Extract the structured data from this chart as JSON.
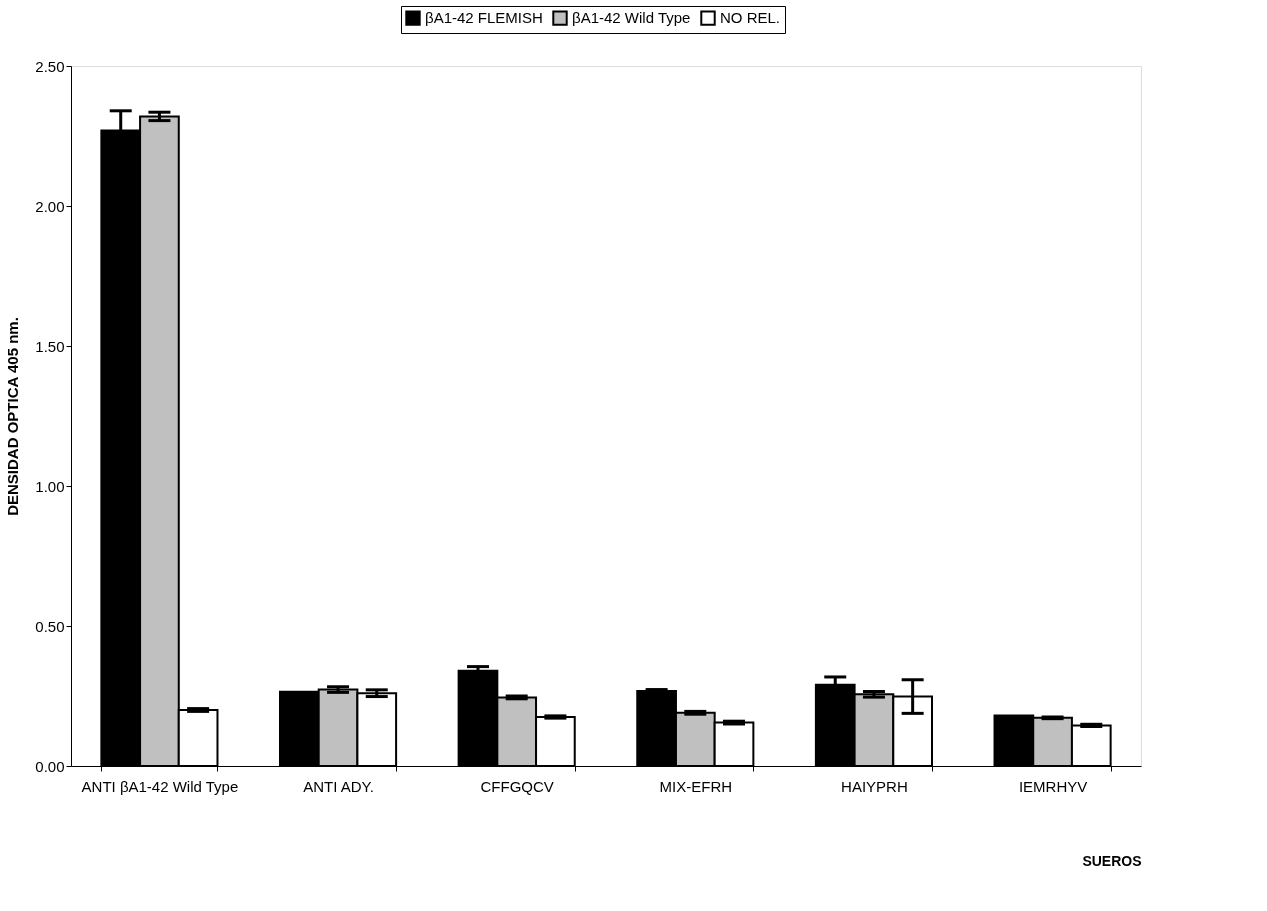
{
  "chart_data": {
    "type": "bar",
    "xlabel": "SUEROS",
    "ylabel": "DENSIDAD OPTICA 405 nm.",
    "categories": [
      "ANTI βA1-42 Wild Type",
      "ANTI ADY.",
      "CFFGQCV",
      "MIX-EFRH",
      "HAIYPRH",
      "IEMRHYV"
    ],
    "series": [
      {
        "name": "βA1-42 FLEMISH",
        "color": "#000000",
        "values": [
          2.27,
          0.265,
          0.34,
          0.268,
          0.29,
          0.18
        ],
        "errors": [
          0.07,
          null,
          0.015,
          0.005,
          0.028,
          null
        ]
      },
      {
        "name": "βA1-42 Wild Type",
        "color": "#c0c0c0",
        "values": [
          2.32,
          0.273,
          0.245,
          0.19,
          0.256,
          0.172
        ],
        "errors": [
          0.015,
          0.01,
          0.005,
          0.005,
          0.01,
          0.003
        ]
      },
      {
        "name": "NO REL.",
        "color": "#ffffff",
        "values": [
          0.2,
          0.26,
          0.175,
          0.155,
          0.248,
          0.145
        ],
        "errors": [
          0.005,
          0.012,
          0.004,
          0.005,
          0.06,
          0.004
        ]
      }
    ],
    "ylim": [
      0,
      2.5
    ],
    "yticks": [
      {
        "value": 0,
        "label": "0.00"
      },
      {
        "value": 0.5,
        "label": "0.50"
      },
      {
        "value": 1.0,
        "label": "1.00"
      },
      {
        "value": 1.5,
        "label": "1.50"
      },
      {
        "value": 2.0,
        "label": "2.00"
      },
      {
        "value": 2.5,
        "label": "2.50"
      }
    ],
    "grid": false,
    "legend": "top"
  }
}
